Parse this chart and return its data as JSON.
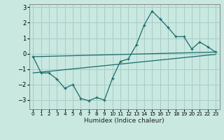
{
  "xlabel": "Humidex (Indice chaleur)",
  "background_color": "#c8e8e0",
  "grid_color": "#a8ccc8",
  "line_color": "#1a6b6b",
  "xlim": [
    -0.5,
    23.5
  ],
  "ylim": [
    -3.6,
    3.2
  ],
  "yticks": [
    -3,
    -2,
    -1,
    0,
    1,
    2,
    3
  ],
  "xticks": [
    0,
    1,
    2,
    3,
    4,
    5,
    6,
    7,
    8,
    9,
    10,
    11,
    12,
    13,
    14,
    15,
    16,
    17,
    18,
    19,
    20,
    21,
    22,
    23
  ],
  "line1_x": [
    0,
    1,
    2,
    3,
    4,
    5,
    6,
    7,
    8,
    9,
    10,
    11,
    12,
    13,
    14,
    15,
    16,
    17,
    18,
    19,
    20,
    21,
    22,
    23
  ],
  "line1_y": [
    -0.2,
    -1.25,
    -1.25,
    -1.65,
    -2.25,
    -2.0,
    -2.9,
    -3.05,
    -2.85,
    -3.0,
    -1.6,
    -0.5,
    -0.35,
    0.55,
    1.85,
    2.75,
    2.25,
    1.7,
    1.1,
    1.1,
    0.3,
    0.75,
    0.45,
    0.1
  ],
  "line2_x": [
    0,
    23
  ],
  "line2_y": [
    -0.2,
    0.1
  ],
  "line3_x": [
    0,
    23
  ],
  "line3_y": [
    -1.25,
    -0.05
  ]
}
